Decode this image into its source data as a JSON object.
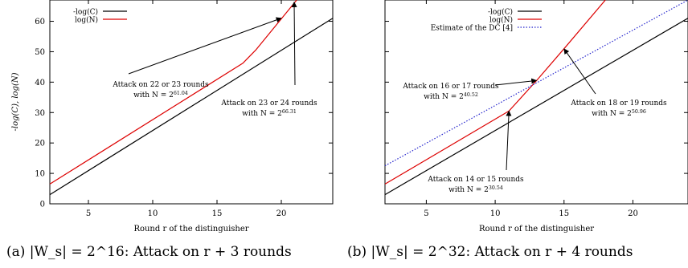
{
  "captions": {
    "a": "(a) |W_s| = 2^16: Attack on r + 3 rounds",
    "b": "(b) |W_s| = 2^32: Attack on r + 4 rounds"
  },
  "chart_data": [
    {
      "type": "line",
      "title": "",
      "xlabel": "Round r of the distinguisher",
      "ylabel": "-log(C), log(N)",
      "xlim": [
        2,
        24
      ],
      "ylim": [
        0,
        67
      ],
      "xticks": [
        5,
        10,
        15,
        20
      ],
      "yticks": [
        0,
        10,
        20,
        30,
        40,
        50,
        60
      ],
      "legend_position": "top-left",
      "series": [
        {
          "name": "-log(C)",
          "color": "#000000",
          "style": "solid",
          "points": [
            [
              2,
              3
            ],
            [
              24,
              61
            ]
          ]
        },
        {
          "name": "log(N)",
          "color": "#dd0000",
          "style": "solid",
          "points": [
            [
              2,
              6.5
            ],
            [
              17,
              46.2
            ],
            [
              18,
              50.5
            ],
            [
              21.2,
              67
            ]
          ]
        }
      ],
      "annotations": [
        {
          "lines": [
            "Attack on 22 or 23 rounds",
            "with N = 2^61.04"
          ],
          "arrow_to": [
            20,
            61.04
          ]
        },
        {
          "lines": [
            "Attack on 23 or 24 rounds",
            "with N = 2^66.31"
          ],
          "arrow_to": [
            21,
            66.31
          ]
        }
      ]
    },
    {
      "type": "line",
      "title": "",
      "xlabel": "Round r of the distinguisher",
      "ylabel": "",
      "xlim": [
        2,
        24
      ],
      "ylim": [
        0,
        67
      ],
      "xticks": [
        5,
        10,
        15,
        20
      ],
      "yticks": [],
      "legend_position": "top-left",
      "series": [
        {
          "name": "-log(C)",
          "color": "#000000",
          "style": "solid",
          "points": [
            [
              2,
              3
            ],
            [
              24,
              61
            ]
          ]
        },
        {
          "name": "log(N)",
          "color": "#dd0000",
          "style": "solid",
          "points": [
            [
              2,
              6.5
            ],
            [
              11,
              30.5
            ],
            [
              13,
              40.5
            ],
            [
              15,
              51
            ],
            [
              18,
              67
            ]
          ]
        },
        {
          "name": "Estimate of the DC [4]",
          "color": "#2222cc",
          "style": "dotted",
          "points": [
            [
              2,
              12.5
            ],
            [
              24,
              67
            ]
          ]
        }
      ],
      "annotations": [
        {
          "lines": [
            "Attack on 16 or 17 rounds",
            "with N = 2^40.52"
          ],
          "arrow_to": [
            13,
            40.52
          ]
        },
        {
          "lines": [
            "Attack on 18 or 19 rounds",
            "with N = 2^50.96"
          ],
          "arrow_to": [
            15,
            50.96
          ]
        },
        {
          "lines": [
            "Attack on 14 or 15 rounds",
            "with N = 2^30.54"
          ],
          "arrow_to": [
            11,
            30.54
          ]
        }
      ]
    }
  ]
}
